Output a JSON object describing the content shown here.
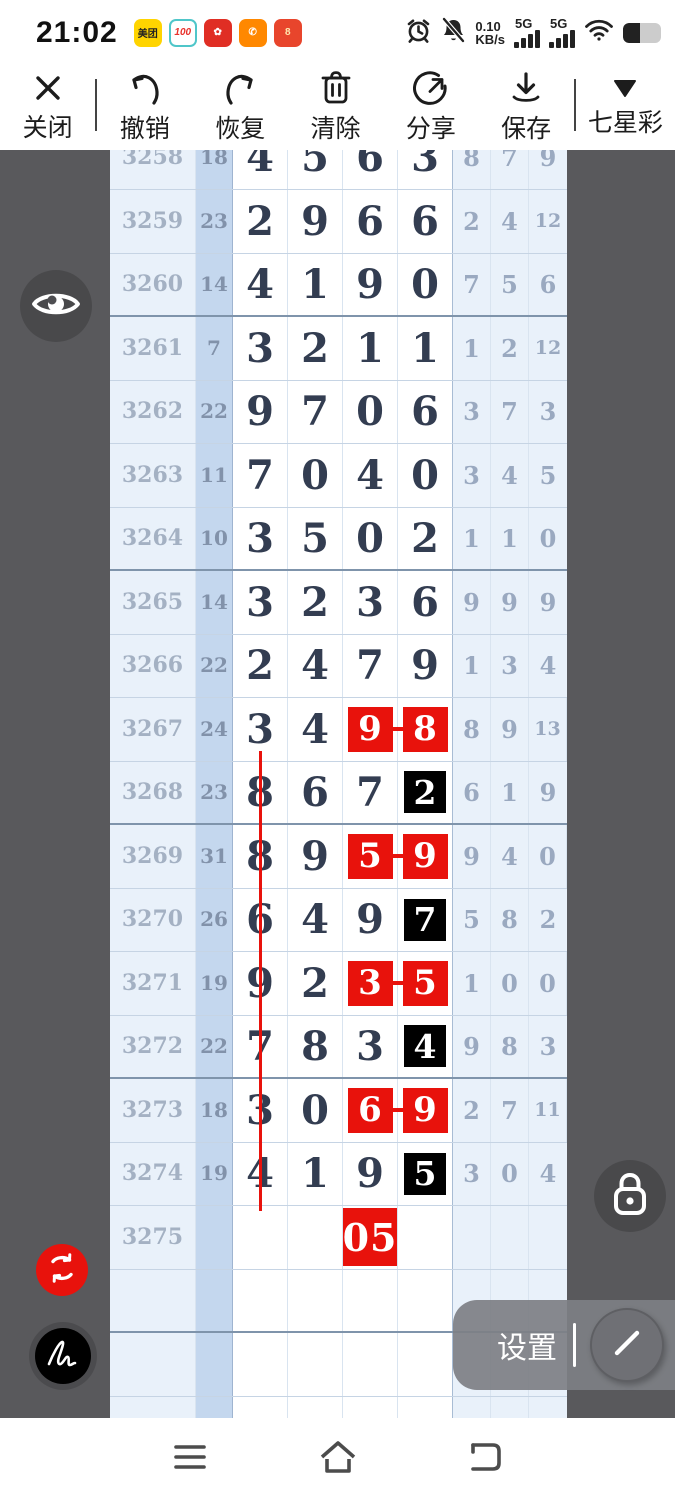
{
  "status_bar": {
    "time": "21:02",
    "app_icons": [
      {
        "name": "meituan-app-icon",
        "label": "美团",
        "bg": "#ffd400",
        "fg": "#222",
        "border": "none",
        "italic": false
      },
      {
        "name": "100-points-app-icon",
        "label": "100",
        "bg": "#ffffff",
        "fg": "#e8322c",
        "border": "2px solid #4fc6c9",
        "italic": true
      },
      {
        "name": "pinduoduo-app-icon",
        "label": "✿",
        "bg": "#e02e24",
        "fg": "#fff",
        "border": "none",
        "italic": false
      },
      {
        "name": "phone-app-icon",
        "label": "✆",
        "bg": "#ff8800",
        "fg": "#fff",
        "border": "none",
        "italic": false
      },
      {
        "name": "58-app-icon",
        "label": "8",
        "bg": "#e8452c",
        "fg": "#ffe9b0",
        "border": "none",
        "italic": false
      }
    ],
    "net_speed_value": "0.10",
    "net_speed_unit": "KB/s",
    "sim1": "5G",
    "sim2": "5G"
  },
  "toolbar": {
    "items": [
      {
        "id": "close",
        "label": "关闭"
      },
      {
        "id": "undo",
        "label": "撤销"
      },
      {
        "id": "redo",
        "label": "恢复"
      },
      {
        "id": "clear",
        "label": "清除"
      },
      {
        "id": "share",
        "label": "分享"
      },
      {
        "id": "save",
        "label": "保存"
      },
      {
        "id": "lottery",
        "label": "七星彩"
      }
    ]
  },
  "overlays": {
    "settings_label": "设置"
  },
  "colors": {
    "highlight_red": "#e8120c",
    "highlight_black": "#000000",
    "stage_gray": "#59595c",
    "sum_col_blue": "#c4d7ee",
    "light_col_blue": "#e9f1fa"
  },
  "chart": {
    "rows": [
      {
        "p": "3258",
        "sum": "18",
        "d": [
          "4",
          "5",
          "6",
          "3"
        ],
        "x": [
          "8",
          "7",
          "9"
        ],
        "clip": true
      },
      {
        "p": "3259",
        "sum": "23",
        "d": [
          "2",
          "9",
          "6",
          "6"
        ],
        "x": [
          "2",
          "4",
          "12"
        ]
      },
      {
        "p": "3260",
        "sum": "14",
        "d": [
          "4",
          "1",
          "9",
          "0"
        ],
        "x": [
          "7",
          "5",
          "6"
        ],
        "thick": true
      },
      {
        "p": "3261",
        "sum": "7",
        "d": [
          "3",
          "2",
          "1",
          "1"
        ],
        "x": [
          "1",
          "2",
          "12"
        ]
      },
      {
        "p": "3262",
        "sum": "22",
        "d": [
          "9",
          "7",
          "0",
          "6"
        ],
        "x": [
          "3",
          "7",
          "3"
        ]
      },
      {
        "p": "3263",
        "sum": "11",
        "d": [
          "7",
          "0",
          "4",
          "0"
        ],
        "x": [
          "3",
          "4",
          "5"
        ]
      },
      {
        "p": "3264",
        "sum": "10",
        "d": [
          "3",
          "5",
          "0",
          "2"
        ],
        "x": [
          "1",
          "1",
          "0"
        ],
        "thick": true
      },
      {
        "p": "3265",
        "sum": "14",
        "d": [
          "3",
          "2",
          "3",
          "6"
        ],
        "x": [
          "9",
          "9",
          "9"
        ]
      },
      {
        "p": "3266",
        "sum": "22",
        "d": [
          "2",
          "4",
          "7",
          "9"
        ],
        "x": [
          "1",
          "3",
          "4"
        ]
      },
      {
        "p": "3267",
        "sum": "24",
        "d": [
          "3",
          "4",
          {
            "v": "9",
            "s": "red"
          },
          {
            "v": "8",
            "s": "red"
          }
        ],
        "x": [
          "8",
          "9",
          "13"
        ],
        "dash": true
      },
      {
        "p": "3268",
        "sum": "23",
        "d": [
          "8",
          "6",
          "7",
          {
            "v": "2",
            "s": "black"
          }
        ],
        "x": [
          "6",
          "1",
          "9"
        ],
        "thick": true
      },
      {
        "p": "3269",
        "sum": "31",
        "d": [
          "8",
          "9",
          {
            "v": "5",
            "s": "red"
          },
          {
            "v": "9",
            "s": "red"
          }
        ],
        "x": [
          "9",
          "4",
          "0"
        ],
        "dash": true
      },
      {
        "p": "3270",
        "sum": "26",
        "d": [
          "6",
          "4",
          "9",
          {
            "v": "7",
            "s": "black"
          }
        ],
        "x": [
          "5",
          "8",
          "2"
        ]
      },
      {
        "p": "3271",
        "sum": "19",
        "d": [
          "9",
          "2",
          {
            "v": "3",
            "s": "red"
          },
          {
            "v": "5",
            "s": "red"
          }
        ],
        "x": [
          "1",
          "0",
          "0"
        ],
        "dash": true
      },
      {
        "p": "3272",
        "sum": "22",
        "d": [
          "7",
          "8",
          "3",
          {
            "v": "4",
            "s": "black"
          }
        ],
        "x": [
          "9",
          "8",
          "3"
        ],
        "thick": true
      },
      {
        "p": "3273",
        "sum": "18",
        "d": [
          "3",
          "0",
          {
            "v": "6",
            "s": "red"
          },
          {
            "v": "9",
            "s": "red"
          }
        ],
        "x": [
          "2",
          "7",
          "11"
        ],
        "dash": true
      },
      {
        "p": "3274",
        "sum": "19",
        "d": [
          "4",
          "1",
          "9",
          {
            "v": "5",
            "s": "black"
          }
        ],
        "x": [
          "3",
          "0",
          "4"
        ]
      },
      {
        "p": "3275",
        "sum": "",
        "d": [
          "",
          "",
          {
            "v": "05",
            "s": "redbig"
          },
          ""
        ],
        "x": [
          "",
          "",
          ""
        ]
      },
      {
        "p": "",
        "sum": "",
        "d": [
          "",
          "",
          "",
          ""
        ],
        "x": [
          "",
          "",
          ""
        ],
        "thick": true
      },
      {
        "p": "",
        "sum": "",
        "d": [
          "",
          "",
          "",
          ""
        ],
        "x": [
          "",
          "",
          ""
        ]
      },
      {
        "p": "",
        "sum": "",
        "d": [
          "",
          "",
          "",
          ""
        ],
        "x": [
          "",
          "",
          ""
        ]
      }
    ]
  }
}
